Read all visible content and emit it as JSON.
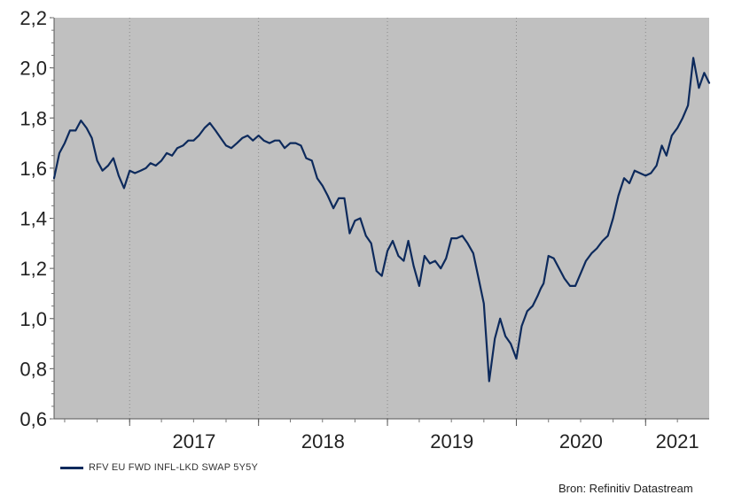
{
  "chart_data": {
    "type": "line",
    "y_axis": {
      "ylim": [
        0.6,
        2.2
      ],
      "tick_labels": [
        "0,6",
        "0,8",
        "1,0",
        "1,2",
        "1,4",
        "1,6",
        "1,8",
        "2,0",
        "2,2"
      ]
    },
    "x_axis": {
      "xlim": [
        "2016-06-01",
        "2021-06-30"
      ],
      "tick_labels": [
        "2017",
        "2018",
        "2019",
        "2020",
        "2021"
      ]
    },
    "grid": true,
    "legend_placement": "bottom-left",
    "colors": {
      "plot_background": "#c0c0c0",
      "line": "#0d2a5c"
    },
    "series": [
      {
        "name": "RFV EU FWD INFL-LKD SWAP 5Y5Y",
        "x": [
          "2016-06-01",
          "2016-06-16",
          "2016-07-01",
          "2016-07-16",
          "2016-08-01",
          "2016-08-16",
          "2016-09-01",
          "2016-09-16",
          "2016-10-01",
          "2016-10-16",
          "2016-11-01",
          "2016-11-16",
          "2016-12-01",
          "2016-12-16",
          "2017-01-01",
          "2017-01-16",
          "2017-02-01",
          "2017-02-16",
          "2017-03-01",
          "2017-03-16",
          "2017-04-01",
          "2017-04-16",
          "2017-05-01",
          "2017-05-16",
          "2017-06-01",
          "2017-06-16",
          "2017-07-01",
          "2017-07-16",
          "2017-08-01",
          "2017-08-16",
          "2017-09-01",
          "2017-09-16",
          "2017-10-01",
          "2017-10-16",
          "2017-11-01",
          "2017-11-16",
          "2017-12-01",
          "2017-12-16",
          "2018-01-01",
          "2018-01-16",
          "2018-02-01",
          "2018-02-16",
          "2018-03-01",
          "2018-03-16",
          "2018-04-01",
          "2018-04-16",
          "2018-05-01",
          "2018-05-16",
          "2018-06-01",
          "2018-06-16",
          "2018-07-01",
          "2018-07-16",
          "2018-08-01",
          "2018-08-16",
          "2018-09-01",
          "2018-09-16",
          "2018-10-01",
          "2018-10-16",
          "2018-11-01",
          "2018-11-16",
          "2018-12-01",
          "2018-12-16",
          "2019-01-01",
          "2019-01-16",
          "2019-02-01",
          "2019-02-16",
          "2019-03-01",
          "2019-03-16",
          "2019-04-01",
          "2019-04-16",
          "2019-05-01",
          "2019-05-16",
          "2019-06-01",
          "2019-06-16",
          "2019-07-01",
          "2019-07-16",
          "2019-08-01",
          "2019-08-16",
          "2019-09-01",
          "2019-09-16",
          "2019-10-01",
          "2019-10-16",
          "2019-11-01",
          "2019-11-16",
          "2019-12-01",
          "2019-12-16",
          "2020-01-01",
          "2020-01-16",
          "2020-02-01",
          "2020-02-16",
          "2020-03-01",
          "2020-03-10",
          "2020-03-18",
          "2020-04-01",
          "2020-04-16",
          "2020-05-01",
          "2020-05-16",
          "2020-06-01",
          "2020-06-16",
          "2020-07-01",
          "2020-07-16",
          "2020-08-01",
          "2020-08-16",
          "2020-09-01",
          "2020-09-16",
          "2020-10-01",
          "2020-10-16",
          "2020-11-01",
          "2020-11-16",
          "2020-12-01",
          "2020-12-16",
          "2021-01-01",
          "2021-01-16",
          "2021-02-01",
          "2021-02-16",
          "2021-03-01",
          "2021-03-16",
          "2021-04-01",
          "2021-04-16",
          "2021-05-01",
          "2021-05-16",
          "2021-06-01",
          "2021-06-16",
          "2021-06-30"
        ],
        "values": [
          1.56,
          1.66,
          1.7,
          1.75,
          1.75,
          1.79,
          1.76,
          1.72,
          1.63,
          1.59,
          1.61,
          1.64,
          1.57,
          1.52,
          1.59,
          1.58,
          1.59,
          1.6,
          1.62,
          1.61,
          1.63,
          1.66,
          1.65,
          1.68,
          1.69,
          1.71,
          1.71,
          1.73,
          1.76,
          1.78,
          1.75,
          1.72,
          1.69,
          1.68,
          1.7,
          1.72,
          1.73,
          1.71,
          1.73,
          1.71,
          1.7,
          1.71,
          1.71,
          1.68,
          1.7,
          1.7,
          1.69,
          1.64,
          1.63,
          1.56,
          1.53,
          1.49,
          1.44,
          1.48,
          1.48,
          1.34,
          1.39,
          1.4,
          1.33,
          1.3,
          1.19,
          1.17,
          1.27,
          1.31,
          1.25,
          1.23,
          1.31,
          1.21,
          1.13,
          1.25,
          1.22,
          1.23,
          1.2,
          1.24,
          1.32,
          1.32,
          1.33,
          1.3,
          1.26,
          1.16,
          1.06,
          0.75,
          0.92,
          1.0,
          0.93,
          0.9,
          0.84,
          0.97,
          1.03,
          1.05,
          1.09,
          1.12,
          1.14,
          1.25,
          1.24,
          1.2,
          1.16,
          1.13,
          1.13,
          1.18,
          1.23,
          1.26,
          1.28,
          1.31,
          1.33,
          1.4,
          1.49,
          1.56,
          1.54,
          1.59,
          1.58,
          1.57,
          1.58,
          1.61,
          1.69,
          1.65,
          1.73,
          1.76,
          1.8,
          1.85,
          2.04,
          1.92,
          1.98,
          1.94
        ]
      }
    ]
  },
  "legend": {
    "label": "RFV EU FWD INFL-LKD SWAP 5Y5Y"
  },
  "source": "Bron: Refinitiv Datastream"
}
